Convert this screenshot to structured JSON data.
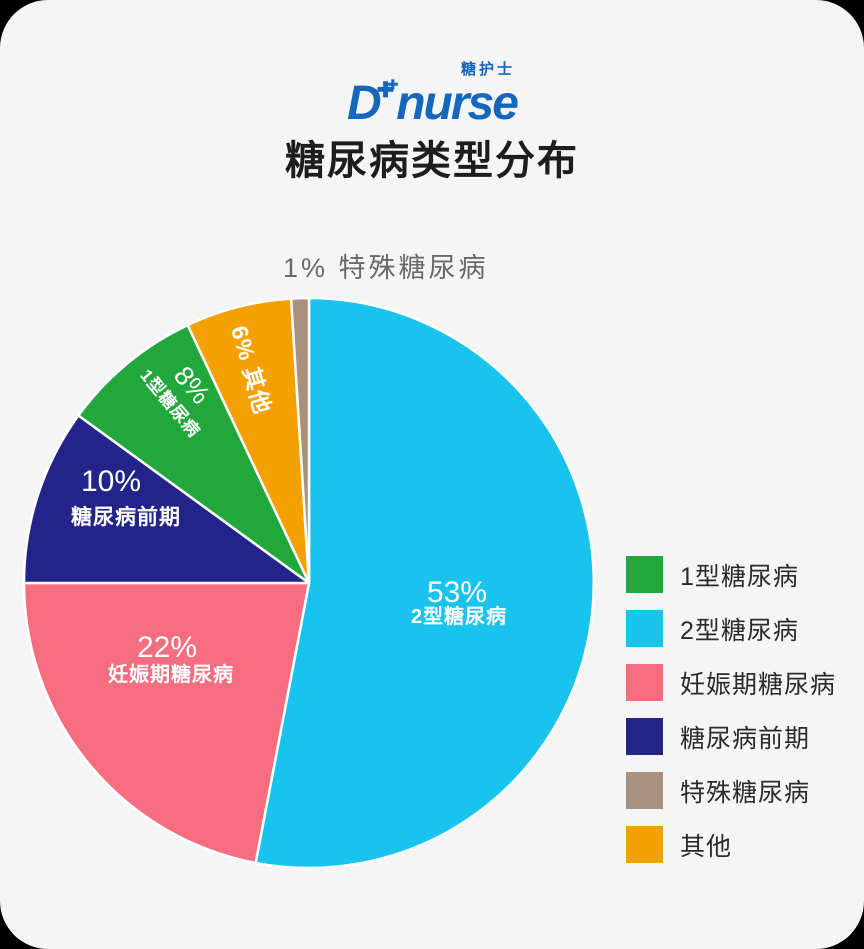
{
  "page": {
    "outer_background": "#000000",
    "card_background": "#F5F5F5"
  },
  "logo": {
    "brand_initial": "D",
    "brand": "nurse",
    "brand_cn": "糖护士",
    "color": "#1566BD"
  },
  "title": "糖尿病类型分布",
  "chart_data": {
    "type": "pie",
    "title": "糖尿病类型分布",
    "unit": "%",
    "slices": [
      {
        "id": "type1",
        "label": "1型糖尿病",
        "value": 8,
        "color": "#21A73C"
      },
      {
        "id": "type2",
        "label": "2型糖尿病",
        "value": 53,
        "color": "#18C3EE"
      },
      {
        "id": "gestational",
        "label": "妊娠期糖尿病",
        "value": 22,
        "color": "#F76D80"
      },
      {
        "id": "prediabetes",
        "label": "糖尿病前期",
        "value": 10,
        "color": "#232489"
      },
      {
        "id": "special",
        "label": "特殊糖尿病",
        "value": 1,
        "color": "#A9917F"
      },
      {
        "id": "other",
        "label": "其他",
        "value": 6,
        "color": "#F4A000"
      }
    ],
    "draw_order": [
      "type2",
      "gestational",
      "prediabetes",
      "type1",
      "other",
      "special"
    ],
    "start_angle_deg": 0,
    "direction": "clockwise",
    "slice_separator_color": "#FFFFFF",
    "inside_label_color": "#FFFFFF",
    "outside_callout": "1% 特殊糖尿病",
    "outside_callout_color": "#6A6A6A",
    "legend_position": "right"
  }
}
